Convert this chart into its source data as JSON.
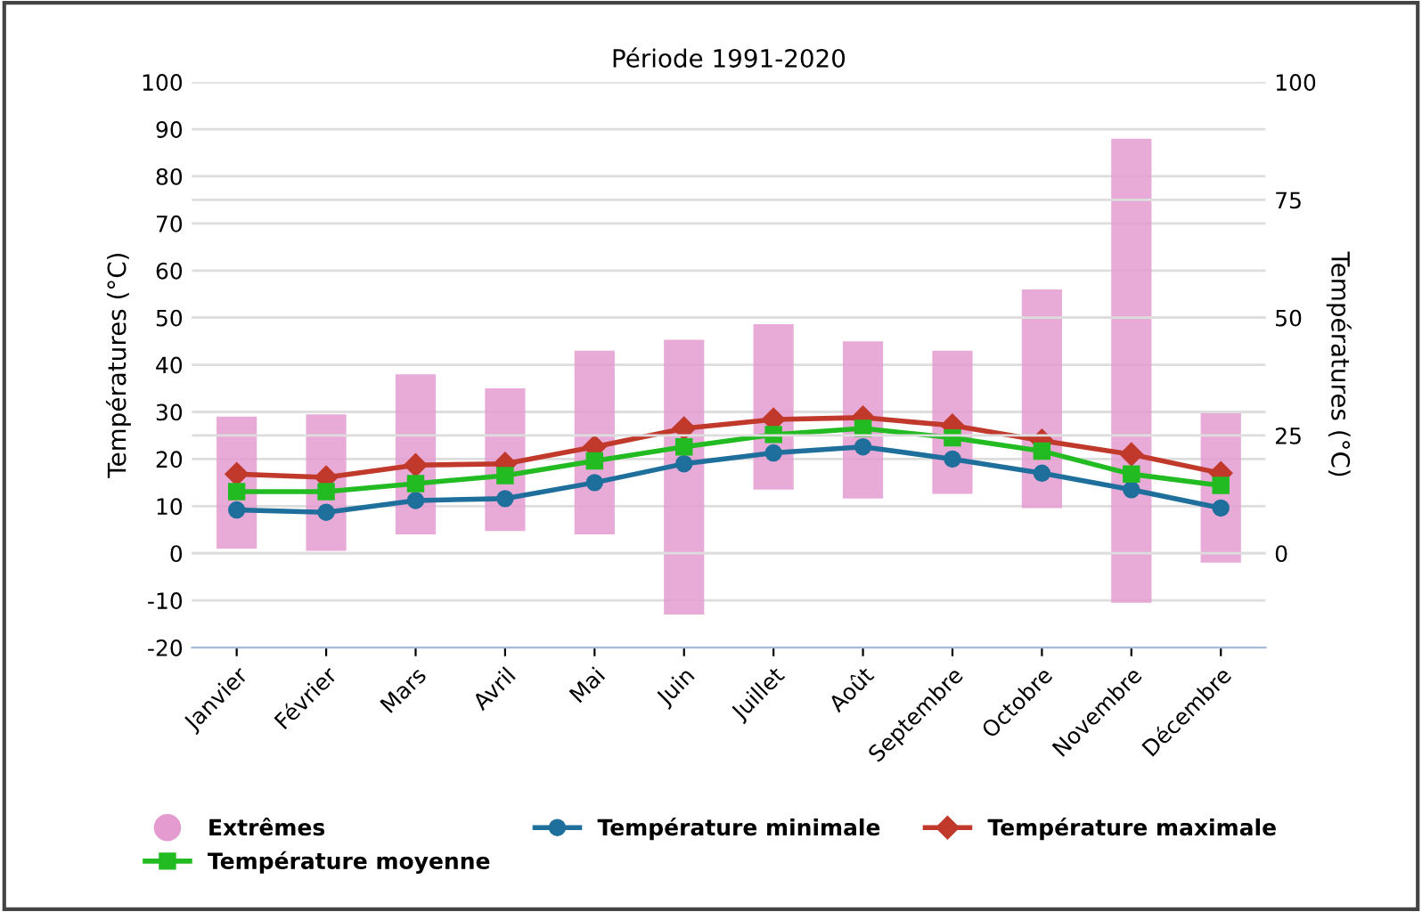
{
  "chart_data": {
    "type": "bar",
    "title": "Période 1991-2020",
    "ylabel": "Températures (°C)",
    "y2label": "Températures (°C)",
    "categories": [
      "Janvier",
      "Février",
      "Mars",
      "Avril",
      "Mai",
      "Juin",
      "Juillet",
      "Août",
      "Septembre",
      "Octobre",
      "Novembre",
      "Décembre"
    ],
    "series": [
      {
        "name": "Extrêmes",
        "color": "#e49bd0",
        "base": [
          1,
          0.5,
          4,
          4.7,
          4,
          -13,
          13.5,
          11.6,
          12.6,
          9.6,
          -10.5,
          -2
        ],
        "values": [
          28,
          29,
          34,
          30.3,
          39,
          58.3,
          35.1,
          33.4,
          30.4,
          46.4,
          98.5,
          31.7
        ]
      },
      {
        "name": "Température minimale",
        "type": "line",
        "color": "#1f6f9c",
        "marker": "circle",
        "values": [
          9.2,
          8.7,
          11.2,
          11.6,
          15,
          19,
          21.3,
          22.6,
          20,
          17,
          13.5,
          9.6
        ]
      },
      {
        "name": "Température maximale",
        "type": "line",
        "color": "#c0392b",
        "marker": "diamond",
        "values": [
          16.8,
          16.1,
          18.7,
          19,
          22.6,
          26.5,
          28.4,
          28.8,
          27.1,
          23.9,
          21,
          17
        ]
      },
      {
        "name": "Température moyenne",
        "type": "line",
        "color": "#22bb22",
        "marker": "square",
        "values": [
          13.1,
          13.1,
          14.8,
          16.5,
          19.6,
          22.6,
          25.2,
          26.5,
          24.5,
          21.7,
          16.8,
          14.4
        ]
      }
    ],
    "ylim": [
      -20,
      100
    ],
    "yticks": [
      -20,
      -10,
      0,
      10,
      20,
      30,
      40,
      50,
      60,
      70,
      80,
      90,
      100
    ],
    "y2lim": [
      -20,
      100
    ],
    "y2ticks": [
      0,
      25,
      50,
      75,
      100
    ],
    "grid": "y",
    "legend": "bottom"
  }
}
